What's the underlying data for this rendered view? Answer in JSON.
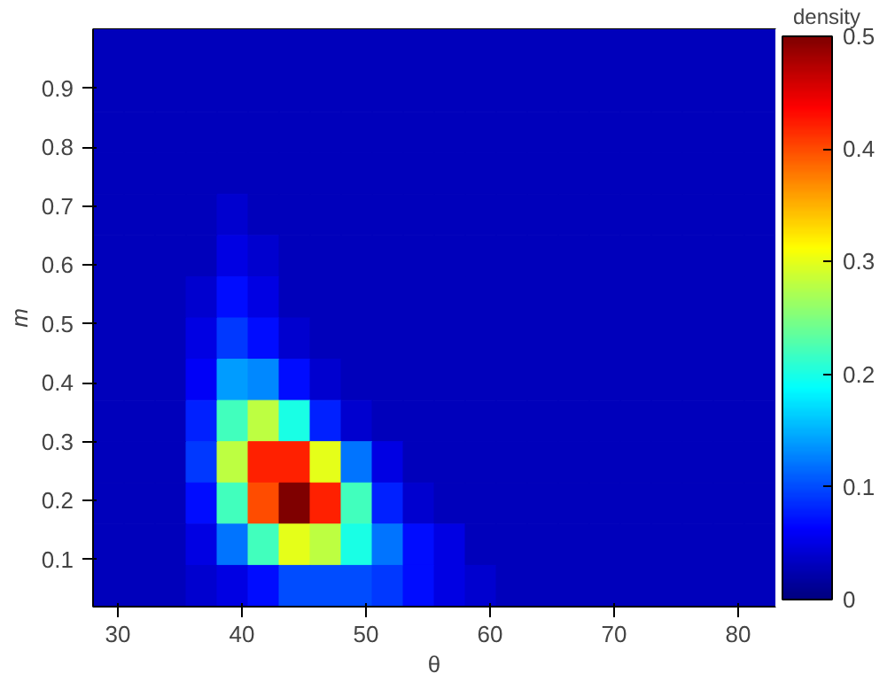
{
  "chart_data": {
    "type": "heatmap",
    "xlabel": "θ",
    "ylabel": "m",
    "clabel": "density",
    "x": [
      29.25,
      31.75,
      34.25,
      36.75,
      39.25,
      41.75,
      44.25,
      46.75,
      49.25,
      51.75,
      54.25,
      56.75,
      59.25,
      61.75,
      64.25,
      66.75,
      69.25,
      71.75,
      74.25,
      76.75,
      79.25,
      81.75
    ],
    "y": [
      0.965,
      0.895,
      0.825,
      0.755,
      0.685,
      0.615,
      0.545,
      0.475,
      0.405,
      0.335,
      0.265,
      0.195,
      0.125,
      0.055
    ],
    "cells": [
      [
        0.03,
        0.03,
        0.03,
        0.03,
        0.03,
        0.03,
        0.03,
        0.03,
        0.03,
        0.03,
        0.03,
        0.03,
        0.03,
        0.03,
        0.03,
        0.03,
        0.03,
        0.03,
        0.03,
        0.03,
        0.03,
        0.03
      ],
      [
        0.03,
        0.03,
        0.03,
        0.03,
        0.03,
        0.03,
        0.03,
        0.03,
        0.03,
        0.03,
        0.03,
        0.03,
        0.03,
        0.03,
        0.03,
        0.03,
        0.03,
        0.03,
        0.03,
        0.03,
        0.03,
        0.03
      ],
      [
        0.03,
        0.03,
        0.03,
        0.03,
        0.03,
        0.03,
        0.03,
        0.03,
        0.03,
        0.03,
        0.03,
        0.03,
        0.03,
        0.03,
        0.03,
        0.03,
        0.03,
        0.03,
        0.03,
        0.03,
        0.03,
        0.03
      ],
      [
        0.03,
        0.03,
        0.03,
        0.03,
        0.03,
        0.03,
        0.03,
        0.03,
        0.03,
        0.03,
        0.03,
        0.03,
        0.03,
        0.03,
        0.03,
        0.03,
        0.03,
        0.03,
        0.03,
        0.03,
        0.03,
        0.03
      ],
      [
        0.03,
        0.03,
        0.03,
        0.03,
        0.04,
        0.03,
        0.03,
        0.03,
        0.03,
        0.03,
        0.03,
        0.03,
        0.03,
        0.03,
        0.03,
        0.03,
        0.03,
        0.03,
        0.03,
        0.03,
        0.03,
        0.03
      ],
      [
        0.03,
        0.03,
        0.03,
        0.03,
        0.05,
        0.04,
        0.03,
        0.03,
        0.03,
        0.03,
        0.03,
        0.03,
        0.03,
        0.03,
        0.03,
        0.03,
        0.03,
        0.03,
        0.03,
        0.03,
        0.03,
        0.03
      ],
      [
        0.03,
        0.03,
        0.03,
        0.04,
        0.07,
        0.05,
        0.03,
        0.03,
        0.03,
        0.03,
        0.03,
        0.03,
        0.03,
        0.03,
        0.03,
        0.03,
        0.03,
        0.03,
        0.03,
        0.03,
        0.03,
        0.03
      ],
      [
        0.03,
        0.03,
        0.03,
        0.05,
        0.09,
        0.07,
        0.04,
        0.03,
        0.03,
        0.03,
        0.03,
        0.03,
        0.03,
        0.03,
        0.03,
        0.03,
        0.03,
        0.03,
        0.03,
        0.03,
        0.03,
        0.03
      ],
      [
        0.03,
        0.03,
        0.03,
        0.06,
        0.14,
        0.13,
        0.07,
        0.04,
        0.03,
        0.03,
        0.03,
        0.03,
        0.03,
        0.03,
        0.03,
        0.03,
        0.03,
        0.03,
        0.03,
        0.03,
        0.03,
        0.03
      ],
      [
        0.03,
        0.03,
        0.03,
        0.08,
        0.22,
        0.28,
        0.2,
        0.08,
        0.04,
        0.03,
        0.03,
        0.03,
        0.03,
        0.03,
        0.03,
        0.03,
        0.03,
        0.03,
        0.03,
        0.03,
        0.03,
        0.03
      ],
      [
        0.03,
        0.03,
        0.03,
        0.09,
        0.28,
        0.42,
        0.42,
        0.3,
        0.12,
        0.05,
        0.03,
        0.03,
        0.03,
        0.03,
        0.03,
        0.03,
        0.03,
        0.03,
        0.03,
        0.03,
        0.03,
        0.03
      ],
      [
        0.03,
        0.03,
        0.03,
        0.07,
        0.22,
        0.4,
        0.5,
        0.42,
        0.22,
        0.08,
        0.04,
        0.03,
        0.03,
        0.03,
        0.03,
        0.03,
        0.03,
        0.03,
        0.03,
        0.03,
        0.03,
        0.03
      ],
      [
        0.03,
        0.03,
        0.03,
        0.05,
        0.12,
        0.22,
        0.3,
        0.28,
        0.2,
        0.12,
        0.07,
        0.05,
        0.03,
        0.03,
        0.03,
        0.03,
        0.03,
        0.03,
        0.03,
        0.03,
        0.03,
        0.03
      ],
      [
        0.03,
        0.03,
        0.03,
        0.04,
        0.05,
        0.07,
        0.1,
        0.1,
        0.1,
        0.09,
        0.07,
        0.05,
        0.04,
        0.03,
        0.03,
        0.03,
        0.03,
        0.03,
        0.03,
        0.03,
        0.03,
        0.03
      ]
    ],
    "xlim": [
      28,
      83
    ],
    "ylim": [
      0.02,
      1.0
    ],
    "xticks": [
      30,
      40,
      50,
      60,
      70,
      80
    ],
    "yticks": [
      0.1,
      0.2,
      0.3,
      0.4,
      0.5,
      0.6,
      0.7,
      0.8,
      0.9
    ],
    "clim": [
      0,
      0.5
    ],
    "cticks": [
      0,
      0.1,
      0.2,
      0.3,
      0.4,
      0.5
    ]
  }
}
